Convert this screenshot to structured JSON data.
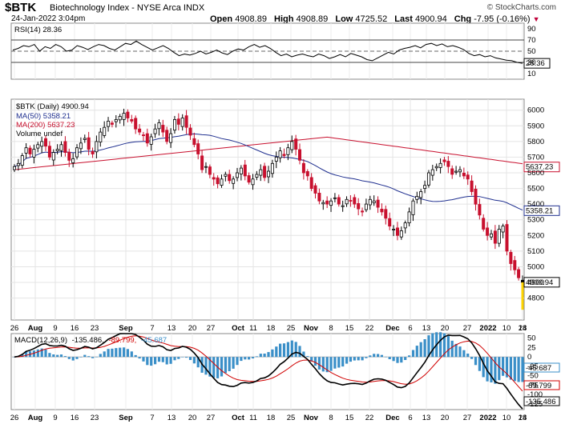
{
  "header": {
    "symbol": "$BTK",
    "name": "Biotechnology Index - NYSE Arca INDX",
    "timestamp": "24-Jan-2022 3:04pm",
    "watermark": "© StockCharts.com",
    "quote": {
      "open_label": "Open",
      "open": "4908.89",
      "high_label": "High",
      "high": "4908.89",
      "low_label": "Low",
      "low": "4725.52",
      "last_label": "Last",
      "last": "4900.94",
      "chg_label": "Chg",
      "chg": "-7.95 (-0.16%)"
    }
  },
  "chart_data": [
    {
      "type": "line",
      "panel": "RSI",
      "legend": "RSI(14) 28.36",
      "last_label": "28.36",
      "ylim": [
        0,
        100
      ],
      "yticks": [
        90,
        70,
        50,
        30,
        10
      ],
      "levels": [
        70,
        50,
        30
      ],
      "values": [
        52,
        55,
        60,
        58,
        62,
        50,
        58,
        55,
        62,
        58,
        50,
        52,
        60,
        57,
        53,
        58,
        62,
        60,
        55,
        52,
        58,
        64,
        62,
        68,
        62,
        57,
        52,
        56,
        60,
        55,
        48,
        42,
        45,
        43,
        46,
        50,
        45,
        48,
        52,
        47,
        44,
        50,
        54,
        52,
        58,
        62,
        57,
        60,
        55,
        48,
        42,
        45,
        40,
        43,
        45,
        42,
        40,
        45,
        42,
        37,
        40,
        44,
        40,
        46,
        43,
        40,
        35,
        33,
        38,
        43,
        48,
        45,
        52,
        55,
        57,
        60,
        56,
        62,
        64,
        60,
        63,
        58,
        60,
        57,
        53,
        46,
        42,
        44,
        40,
        42,
        38,
        36,
        34,
        33,
        30,
        28.36
      ]
    },
    {
      "type": "candlestick",
      "panel": "Price",
      "legend": "$BTK (Daily) 4900.94",
      "yticks": [
        6000,
        5900,
        5800,
        5700,
        5600,
        5500,
        5400,
        5300,
        5200,
        5100,
        5000,
        4900,
        4800
      ],
      "ylim": [
        4660,
        6070
      ],
      "last_label": "4900.94",
      "close": [
        5640,
        5660,
        5710,
        5760,
        5720,
        5750,
        5780,
        5800,
        5770,
        5700,
        5730,
        5750,
        5780,
        5730,
        5680,
        5690,
        5760,
        5790,
        5820,
        5750,
        5720,
        5800,
        5860,
        5890,
        5930,
        5910,
        5940,
        5960,
        5980,
        5950,
        5930,
        5880,
        5860,
        5840,
        5790,
        5830,
        5880,
        5920,
        5860,
        5800,
        5850,
        5940,
        5910,
        5950,
        5890,
        5840,
        5780,
        5720,
        5620,
        5640,
        5590,
        5560,
        5530,
        5560,
        5590,
        5550,
        5560,
        5600,
        5630,
        5580,
        5540,
        5560,
        5590,
        5620,
        5570,
        5610,
        5660,
        5700,
        5740,
        5710,
        5760,
        5800,
        5750,
        5680,
        5600,
        5580,
        5500,
        5470,
        5420,
        5410,
        5400,
        5420,
        5440,
        5400,
        5390,
        5430,
        5420,
        5400,
        5370,
        5350,
        5400,
        5430,
        5420,
        5380,
        5350,
        5310,
        5260,
        5240,
        5200,
        5230,
        5280,
        5350,
        5420,
        5450,
        5480,
        5520,
        5600,
        5620,
        5640,
        5660,
        5670,
        5640,
        5590,
        5610,
        5620,
        5580,
        5560,
        5480,
        5400,
        5330,
        5240,
        5200,
        5210,
        5150,
        5240,
        5260,
        5100,
        5020,
        4980,
        4930,
        4900.94
      ],
      "ma50": {
        "legend": "MA(50) 5358.21",
        "last_label": "5358.21"
      },
      "ma200": {
        "legend": "MA(200) 5637.23",
        "last_label": "5637.23"
      },
      "volume": {
        "legend": "Volume undef"
      },
      "colors": {
        "up": "#000000",
        "down": "#c8102e",
        "ma50": "#1f2f8f",
        "ma200": "#c8102e",
        "current": "#ffd400"
      }
    },
    {
      "type": "line",
      "panel": "MACD",
      "legend_prefix": "MACD(12,26,9)",
      "legend_macd": "-135.486,",
      "legend_signal": "-89.799,",
      "legend_hist": "-45.687",
      "yticks": [
        50,
        25,
        0,
        -25,
        -50,
        -75,
        -100,
        -125
      ],
      "ylim": [
        -140,
        62
      ],
      "last_labels": {
        "hist": "-45.687",
        "signal": "-89.799",
        "macd": "-135.486"
      },
      "colors": {
        "macd": "#000000",
        "signal": "#d00000",
        "hist": "#3a8fc8"
      }
    }
  ],
  "x_axis": {
    "labels": [
      "26",
      "Aug",
      "9",
      "16",
      "23",
      "Sep",
      "7",
      "13",
      "20",
      "27",
      "Oct",
      "11",
      "18",
      "25",
      "Nov",
      "8",
      "15",
      "22",
      "Dec",
      "6",
      "13",
      "20",
      "27",
      "2022",
      "10",
      "18",
      "24"
    ],
    "bold": [
      "Aug",
      "Sep",
      "Oct",
      "Nov",
      "Dec",
      "2022"
    ]
  }
}
